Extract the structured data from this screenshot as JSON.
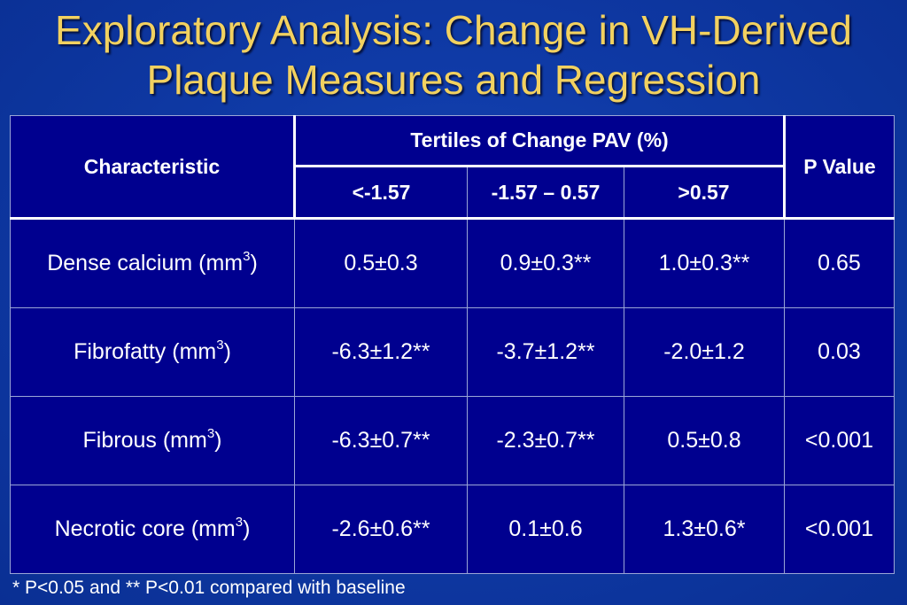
{
  "title": {
    "line1": "Exploratory Analysis: Change in VH-Derived",
    "line2": "Plaque Measures and Regression"
  },
  "table": {
    "header": {
      "characteristic": "Characteristic",
      "tertiles_group": "Tertiles of Change PAV (%)",
      "p_value": "P Value",
      "tertiles": [
        "<-1.57",
        "-1.57 – 0.57",
        ">0.57"
      ]
    },
    "rows": [
      {
        "label": "Dense calcium (mm",
        "sup": "3",
        "label_end": ")",
        "values": [
          "0.5±0.3",
          "0.9±0.3**",
          "1.0±0.3**"
        ],
        "p": "0.65"
      },
      {
        "label": "Fibrofatty (mm",
        "sup": "3",
        "label_end": ")",
        "values": [
          "-6.3±1.2**",
          "-3.7±1.2**",
          "-2.0±1.2"
        ],
        "p": "0.03"
      },
      {
        "label": "Fibrous (mm",
        "sup": "3",
        "label_end": ")",
        "values": [
          "-6.3±0.7**",
          "-2.3±0.7**",
          "0.5±0.8"
        ],
        "p": "<0.001"
      },
      {
        "label": "Necrotic core (mm",
        "sup": "3",
        "label_end": ")",
        "values": [
          "-2.6±0.6**",
          "0.1±0.6",
          "1.3±0.6*"
        ],
        "p": "<0.001"
      }
    ]
  },
  "footnote": "* P<0.05 and ** P<0.01 compared with baseline",
  "colors": {
    "background": "#0f3aa6",
    "title": "#f2d160",
    "table_fill": "#00008f",
    "text": "#ffffff"
  }
}
